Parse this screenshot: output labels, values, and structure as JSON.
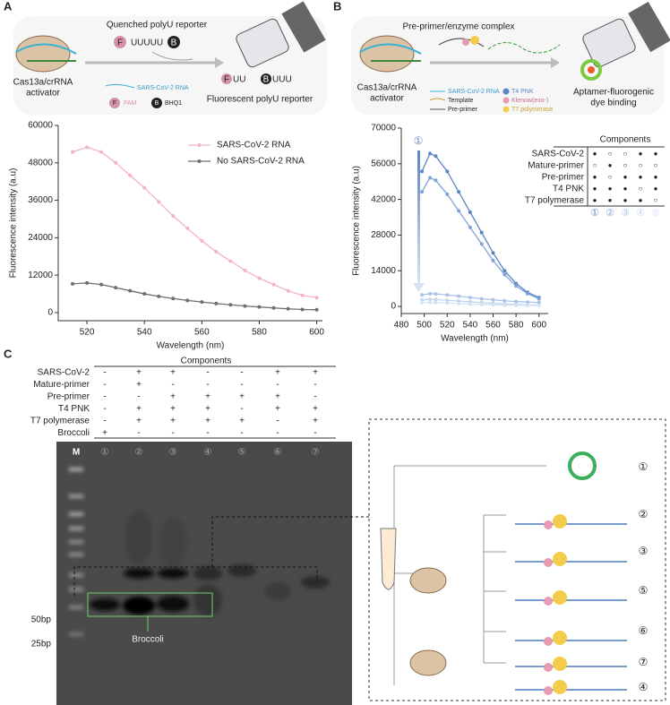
{
  "panel_labels": [
    "A",
    "B",
    "C"
  ],
  "schematic_a": {
    "title": "Quenched polyU reporter",
    "quenched": [
      "F",
      "UUUUU",
      "B"
    ],
    "activator": [
      "Cas13a/crRNA",
      "activator"
    ],
    "legend": [
      "SARS-CoV-2 RNA",
      "F",
      "FAM",
      "B",
      "BHQ1"
    ],
    "product": [
      "F",
      "UU",
      "B",
      "UUU"
    ],
    "product_label": "Fluorescent polyU reporter"
  },
  "schematic_b": {
    "title": "Pre-primer/enzyme complex",
    "activator": [
      "Cas13a/crRNA",
      "activator"
    ],
    "legend": [
      "SARS-CoV-2 RNA",
      "Template",
      "Pre-primer",
      "T4 PNK",
      "Klenow(exo-)",
      "T7 polymerase"
    ],
    "product_label": [
      "Aptamer-fluorogenic",
      "dye binding"
    ]
  },
  "chart_data": [
    {
      "type": "line",
      "xlabel": "Wavelength (nm)",
      "ylabel": "Fluorescence intensity (a.u)",
      "x": [
        515,
        520,
        525,
        530,
        535,
        540,
        545,
        550,
        555,
        560,
        565,
        570,
        575,
        580,
        585,
        590,
        595,
        600
      ],
      "series": [
        {
          "name": "SARS-CoV-2 RNA",
          "color": "#f4b3c4",
          "values": [
            51500,
            53000,
            51500,
            48000,
            44000,
            40000,
            35500,
            31000,
            27000,
            23000,
            19500,
            16500,
            13500,
            11000,
            9000,
            7000,
            5500,
            4800
          ]
        },
        {
          "name": "No SARS-CoV-2 RNA",
          "color": "#6e6e6e",
          "values": [
            9200,
            9500,
            9000,
            8000,
            7000,
            6000,
            5200,
            4500,
            3900,
            3400,
            2900,
            2500,
            2100,
            1800,
            1500,
            1200,
            1000,
            900
          ]
        }
      ],
      "xlim": [
        510,
        602
      ],
      "xticks": [
        520,
        540,
        560,
        580,
        600
      ],
      "ylim": [
        -2600,
        60000
      ],
      "yticks": [
        0,
        12000,
        24000,
        36000,
        48000,
        60000
      ],
      "legend": "upper right"
    },
    {
      "type": "line",
      "xlabel": "Wavelength (nm)",
      "ylabel": "Fluorescence intensity (a.u)",
      "annotation": "①",
      "x": [
        498,
        505,
        510,
        520,
        530,
        540,
        550,
        560,
        570,
        580,
        590,
        600
      ],
      "series": [
        {
          "name": "①",
          "color": "#5b84c4",
          "values": [
            53000,
            60000,
            59000,
            53000,
            45000,
            37000,
            29000,
            21000,
            14000,
            9000,
            5500,
            3500
          ]
        },
        {
          "name": "②",
          "color": "#7fa3d8",
          "values": [
            45000,
            50500,
            49500,
            44000,
            37500,
            31000,
            24500,
            18000,
            12500,
            8000,
            5000,
            3000
          ]
        },
        {
          "name": "③",
          "color": "#a9c3e8",
          "values": [
            4500,
            5000,
            4900,
            4500,
            4000,
            3500,
            3000,
            2600,
            2200,
            1900,
            1700,
            1500
          ]
        },
        {
          "name": "④",
          "color": "#c3d5ef",
          "values": [
            2500,
            2800,
            2700,
            2400,
            2100,
            1800,
            1500,
            1200,
            1000,
            800,
            600,
            500
          ]
        },
        {
          "name": "⑤",
          "color": "#d6e3f5",
          "values": [
            1500,
            1600,
            1500,
            1300,
            1100,
            900,
            750,
            600,
            500,
            400,
            350,
            300
          ]
        }
      ],
      "xlim": [
        480,
        608
      ],
      "xticks": [
        480,
        500,
        520,
        540,
        560,
        580,
        600
      ],
      "ylim": [
        -2800,
        70000
      ],
      "yticks": [
        0,
        14000,
        28000,
        42000,
        56000,
        70000
      ]
    }
  ],
  "components_table": {
    "title": "Components",
    "rows": [
      {
        "name": "SARS-CoV-2",
        "marks": [
          "●",
          "○",
          "○",
          "●",
          "●"
        ]
      },
      {
        "name": "Mature-primer",
        "marks": [
          "○",
          "●",
          "○",
          "○",
          "○"
        ]
      },
      {
        "name": "Pre-primer",
        "marks": [
          "●",
          "○",
          "●",
          "●",
          "●"
        ]
      },
      {
        "name": "T4 PNK",
        "marks": [
          "●",
          "●",
          "●",
          "○",
          "●"
        ]
      },
      {
        "name": "T7 polymerase",
        "marks": [
          "●",
          "●",
          "●",
          "●",
          "○"
        ]
      }
    ]
  },
  "gel_table": {
    "title": "Components",
    "rows": [
      {
        "name": "SARS-CoV-2",
        "marks": [
          "-",
          "+",
          "+",
          "-",
          "-",
          "+",
          "+"
        ]
      },
      {
        "name": "Mature-primer",
        "marks": [
          "-",
          "+",
          "-",
          "-",
          "-",
          "-",
          "-"
        ]
      },
      {
        "name": "Pre-primer",
        "marks": [
          "-",
          "-",
          "+",
          "+",
          "+",
          "+",
          "-"
        ]
      },
      {
        "name": "T4 PNK",
        "marks": [
          "-",
          "+",
          "+",
          "+",
          "-",
          "+",
          "+"
        ]
      },
      {
        "name": "T7 polymerase",
        "marks": [
          "-",
          "+",
          "+",
          "+",
          "+",
          "-",
          "+"
        ]
      },
      {
        "name": "Broccoli",
        "marks": [
          "+",
          "-",
          "-",
          "-",
          "-",
          "-",
          "-"
        ]
      }
    ]
  },
  "gel": {
    "lanes": [
      "M",
      "①",
      "②",
      "③",
      "④",
      "⑤",
      "⑥",
      "⑦"
    ],
    "markers": [
      "50bp",
      "25bp"
    ],
    "band_label": "Broccoli"
  },
  "diagram": {
    "labels": [
      "①",
      "②",
      "③",
      "⑤",
      "⑥",
      "⑦",
      "④"
    ]
  }
}
